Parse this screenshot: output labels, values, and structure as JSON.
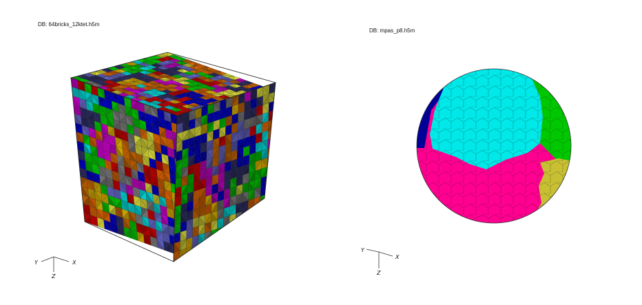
{
  "left_view": {
    "db_label": "DB: 64bricks_12ktet.h5m",
    "axes": {
      "y": "Y",
      "x": "X",
      "z": "Z"
    },
    "palette": [
      "#0000b4",
      "#00b400",
      "#b400b4",
      "#c8a000",
      "#00c8c8",
      "#b40000",
      "#c85a00",
      "#5a5ab4",
      "#c8c832",
      "#6e6e6e",
      "#b45a00",
      "#28285a"
    ]
  },
  "right_view": {
    "db_label": "DB: mpas_p8.h5m",
    "axes": {
      "y": "Y",
      "x": "X",
      "z": "Z"
    },
    "region_colors": {
      "cap": "#00e8e8",
      "right": "#00c800",
      "lower": "#ff0090",
      "left": "#00009a",
      "lower_right": "#c8c032"
    }
  }
}
